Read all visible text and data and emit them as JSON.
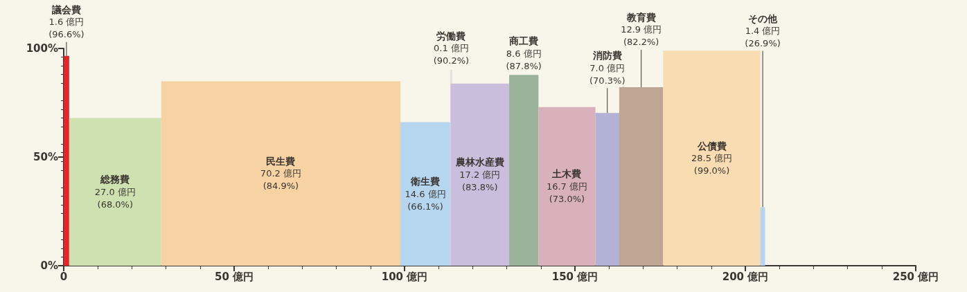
{
  "chart_data": {
    "type": "histogram",
    "bins": [
      0,
      1.6,
      28.6,
      98.8,
      113.4,
      113.5,
      130.7,
      139.3,
      156.0,
      163.0,
      175.9,
      204.4,
      205.8
    ],
    "values": [
      96.6,
      68.0,
      84.9,
      66.1,
      90.2,
      83.8,
      87.8,
      73.0,
      70.3,
      82.2,
      99.0,
      26.9
    ],
    "colors": [
      "#e3262a",
      "#cfe1b1",
      "#f7d2a3",
      "#b6d5ee",
      "#e2e2e2",
      "#cbbedc",
      "#9cb39b",
      "#d8b1bd",
      "#b1b2d6",
      "#bfa594",
      "#f9dcb1",
      "#b6d5ee"
    ],
    "value_labels": [
      "1.6 億円\n(96.6%)",
      "27.0 億円\n(68.0%)",
      "70.2 億円\n(84.9%)",
      "14.6 億円\n(66.1%)",
      "0.1 億円\n(90.2%)",
      "17.2 億円\n(83.8%)",
      "8.6 億円\n(87.8%)",
      "16.7 億円\n(73.0%)",
      "7.0 億円\n(70.3%)",
      "12.9 億円\n(82.2%)",
      "28.5 億円\n(99.0%)",
      "1.4 億円\n(26.9%)"
    ],
    "annotations": [
      "議会費",
      "総務費",
      "民生費",
      "衛生費",
      "労働費",
      "農林水産費",
      "商工費",
      "土木費",
      "消防費",
      "教育費",
      "公債費",
      "その他"
    ],
    "xlim": [
      0,
      250
    ],
    "xticks": [
      {
        "value": 0,
        "label": "0"
      },
      {
        "value": 50,
        "label": "50 億円"
      },
      {
        "value": 100,
        "label": "100 億円"
      },
      {
        "value": 150,
        "label": "150 億円"
      },
      {
        "value": 200,
        "label": "200 億円"
      },
      {
        "value": 250,
        "label": "250 億円"
      }
    ],
    "ylim": [
      0,
      100
    ],
    "yticks": [
      {
        "value": 0,
        "label": "0%"
      },
      {
        "value": 50,
        "label": "50%"
      },
      {
        "value": 100,
        "label": "100%"
      }
    ],
    "grid": false
  }
}
